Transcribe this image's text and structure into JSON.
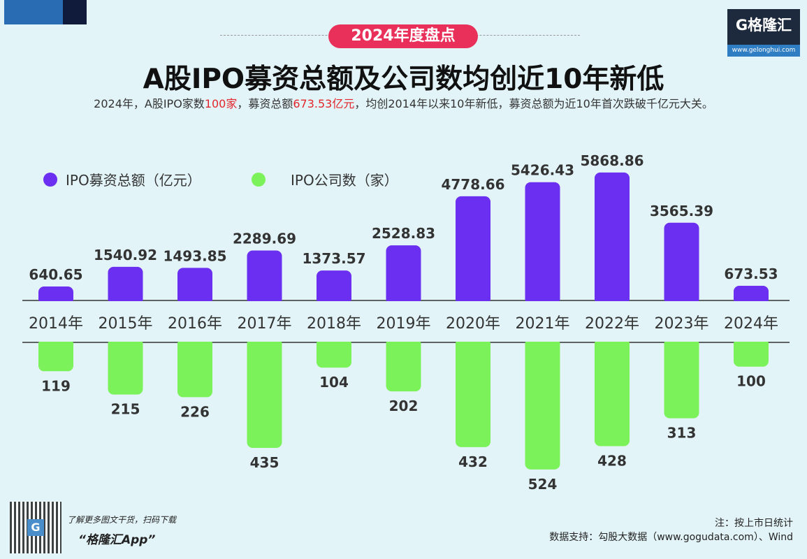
{
  "badge": "2024年度盘点",
  "logo": {
    "text": "G格隆汇",
    "url": "www.gelonghui.com"
  },
  "title": "A股IPO募资总额及公司数均创近10年新低",
  "subtitle": {
    "p1": "2024年，A股IPO家数",
    "r1": "100家",
    "p2": "，募资总额",
    "r2": "673.53亿元",
    "p3": "，均创2014年以来10年新低，募资总额为近10年首次跌破千亿元大关。"
  },
  "chart_data": {
    "type": "bar",
    "categories": [
      "2014年",
      "2015年",
      "2016年",
      "2017年",
      "2018年",
      "2019年",
      "2020年",
      "2021年",
      "2022年",
      "2023年",
      "2024年"
    ],
    "series": [
      {
        "name": "IPO募资总额（亿元）",
        "color": "#6a2ff0",
        "values": [
          640.65,
          1540.92,
          1493.85,
          2289.69,
          1373.57,
          2528.83,
          4778.66,
          5426.43,
          5868.86,
          3565.39,
          673.53
        ]
      },
      {
        "name": "IPO公司数（家）",
        "color": "#7cf25a",
        "values": [
          119,
          215,
          226,
          435,
          104,
          202,
          432,
          524,
          428,
          313,
          100
        ]
      }
    ],
    "layout": "mirrored: fundraising above axis, company count below axis",
    "legend": "top-left",
    "grid": false
  },
  "footer": {
    "promo": "了解更多图文干货，扫码下载",
    "app": "“格隆汇App”",
    "note": "注：按上市日统计",
    "source": "数据支持：勾股大数据（www.gogudata.com）、Wind"
  }
}
